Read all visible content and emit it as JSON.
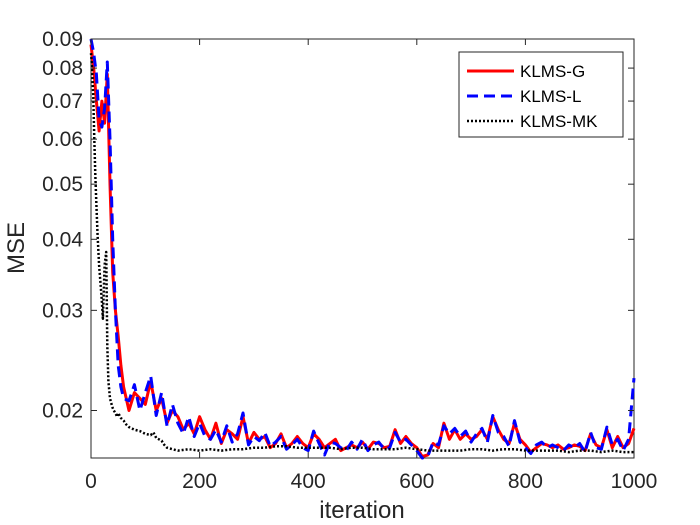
{
  "chart_data": {
    "type": "line",
    "xlabel": "iteration",
    "ylabel": "MSE",
    "xlim": [
      0,
      1000
    ],
    "ylim": [
      0.0165,
      0.09
    ],
    "yscale": "log",
    "grid": false,
    "legend_position": "top-right",
    "xticks": [
      0,
      200,
      400,
      600,
      800,
      1000
    ],
    "xtick_labels": [
      "0",
      "200",
      "400",
      "600",
      "800",
      "1000"
    ],
    "yticks": [
      0.02,
      0.03,
      0.04,
      0.05,
      0.06,
      0.07,
      0.08,
      0.09
    ],
    "ytick_labels": [
      "0.02",
      "0.03",
      "0.04",
      "0.05",
      "0.06",
      "0.07",
      "0.08",
      "0.09"
    ],
    "series": [
      {
        "name": "KLMS-G",
        "color": "#ff0000",
        "style": "solid",
        "x": [
          0,
          5,
          10,
          15,
          20,
          25,
          30,
          35,
          40,
          45,
          50,
          55,
          60,
          70,
          80,
          90,
          100,
          110,
          120,
          130,
          140,
          150,
          160,
          170,
          180,
          190,
          200,
          210,
          220,
          230,
          240,
          250,
          260,
          270,
          280,
          290,
          300,
          310,
          320,
          330,
          340,
          350,
          360,
          370,
          380,
          390,
          400,
          410,
          420,
          430,
          440,
          450,
          460,
          470,
          480,
          490,
          500,
          510,
          520,
          530,
          540,
          550,
          560,
          570,
          580,
          590,
          600,
          610,
          620,
          630,
          640,
          650,
          660,
          670,
          680,
          690,
          700,
          710,
          720,
          730,
          740,
          750,
          760,
          770,
          780,
          790,
          800,
          810,
          820,
          830,
          840,
          850,
          860,
          870,
          880,
          890,
          900,
          910,
          920,
          930,
          940,
          950,
          960,
          970,
          980,
          990,
          1000
        ],
        "y": [
          0.088,
          0.08,
          0.07,
          0.062,
          0.07,
          0.064,
          0.078,
          0.05,
          0.035,
          0.03,
          0.027,
          0.024,
          0.022,
          0.02,
          0.0215,
          0.021,
          0.0205,
          0.0225,
          0.02,
          0.021,
          0.019,
          0.02,
          0.0195,
          0.0185,
          0.019,
          0.0182,
          0.0195,
          0.0185,
          0.0178,
          0.019,
          0.0175,
          0.0185,
          0.0182,
          0.0178,
          0.0195,
          0.0175,
          0.0183,
          0.0178,
          0.018,
          0.0172,
          0.0175,
          0.0182,
          0.0172,
          0.0175,
          0.018,
          0.0175,
          0.0172,
          0.0182,
          0.0178,
          0.0172,
          0.0175,
          0.0178,
          0.017,
          0.0172,
          0.0174,
          0.0172,
          0.0176,
          0.0171,
          0.0176,
          0.0175,
          0.0172,
          0.0173,
          0.0185,
          0.0175,
          0.018,
          0.0175,
          0.0172,
          0.0166,
          0.0167,
          0.0175,
          0.0172,
          0.019,
          0.0178,
          0.0185,
          0.0178,
          0.0182,
          0.0178,
          0.018,
          0.0185,
          0.0178,
          0.0195,
          0.0185,
          0.0178,
          0.0175,
          0.019,
          0.0178,
          0.0174,
          0.0169,
          0.0172,
          0.0175,
          0.0174,
          0.0172,
          0.0174,
          0.0171,
          0.0172,
          0.0174,
          0.0173,
          0.017,
          0.0182,
          0.0174,
          0.0172,
          0.0185,
          0.0172,
          0.018,
          0.0172,
          0.0175,
          0.0186
        ]
      },
      {
        "name": "KLMS-L",
        "color": "#0000ff",
        "style": "dashed",
        "x": [
          0,
          5,
          10,
          15,
          20,
          25,
          30,
          35,
          40,
          45,
          50,
          55,
          60,
          70,
          80,
          90,
          100,
          110,
          120,
          130,
          140,
          150,
          160,
          170,
          180,
          190,
          200,
          210,
          220,
          230,
          240,
          250,
          260,
          270,
          280,
          290,
          300,
          310,
          320,
          330,
          340,
          350,
          360,
          370,
          380,
          390,
          400,
          410,
          420,
          430,
          440,
          450,
          460,
          470,
          480,
          490,
          500,
          510,
          520,
          530,
          540,
          550,
          560,
          570,
          580,
          590,
          600,
          610,
          620,
          630,
          640,
          650,
          660,
          670,
          680,
          690,
          700,
          710,
          720,
          730,
          740,
          750,
          760,
          770,
          780,
          790,
          800,
          810,
          820,
          830,
          840,
          850,
          860,
          870,
          880,
          890,
          900,
          910,
          920,
          930,
          940,
          950,
          960,
          970,
          980,
          990,
          1000
        ],
        "y": [
          0.09,
          0.085,
          0.078,
          0.065,
          0.063,
          0.068,
          0.082,
          0.06,
          0.04,
          0.03,
          0.024,
          0.022,
          0.021,
          0.0208,
          0.0222,
          0.02,
          0.0215,
          0.023,
          0.0196,
          0.0215,
          0.0188,
          0.0205,
          0.019,
          0.0182,
          0.0195,
          0.018,
          0.019,
          0.018,
          0.0178,
          0.0185,
          0.0176,
          0.0188,
          0.0176,
          0.0182,
          0.0198,
          0.0174,
          0.018,
          0.0177,
          0.0183,
          0.0173,
          0.0176,
          0.018,
          0.0171,
          0.0174,
          0.0178,
          0.0172,
          0.017,
          0.0184,
          0.0175,
          0.0167,
          0.0176,
          0.0175,
          0.0172,
          0.017,
          0.0176,
          0.0171,
          0.0178,
          0.017,
          0.0174,
          0.0176,
          0.0171,
          0.0172,
          0.0183,
          0.0176,
          0.0178,
          0.0174,
          0.017,
          0.0165,
          0.0166,
          0.0176,
          0.0174,
          0.0188,
          0.0182,
          0.0186,
          0.018,
          0.0184,
          0.0176,
          0.0182,
          0.0186,
          0.0176,
          0.0196,
          0.0183,
          0.018,
          0.0173,
          0.0192,
          0.0176,
          0.0172,
          0.0168,
          0.0174,
          0.0176,
          0.0172,
          0.0174,
          0.0172,
          0.017,
          0.0174,
          0.0172,
          0.0175,
          0.0169,
          0.0183,
          0.0172,
          0.0171,
          0.0187,
          0.0174,
          0.0178,
          0.017,
          0.0178,
          0.0228
        ]
      },
      {
        "name": "KLMS-MK",
        "color": "#000000",
        "style": "dotted",
        "x": [
          0,
          2,
          4,
          6,
          8,
          10,
          12,
          15,
          18,
          20,
          22,
          25,
          28,
          30,
          32,
          35,
          38,
          40,
          42,
          45,
          48,
          50,
          55,
          60,
          65,
          70,
          80,
          90,
          100,
          110,
          115,
          120,
          125,
          130,
          135,
          140,
          150,
          160,
          180,
          200,
          220,
          240,
          260,
          280,
          300,
          320,
          340,
          360,
          380,
          400,
          420,
          440,
          460,
          480,
          500,
          520,
          540,
          560,
          580,
          600,
          620,
          640,
          660,
          680,
          700,
          720,
          740,
          760,
          780,
          800,
          820,
          840,
          860,
          880,
          900,
          920,
          940,
          960,
          980,
          1000
        ],
        "y": [
          0.085,
          0.08,
          0.072,
          0.06,
          0.052,
          0.046,
          0.041,
          0.036,
          0.033,
          0.031,
          0.029,
          0.036,
          0.038,
          0.026,
          0.0225,
          0.021,
          0.0205,
          0.0202,
          0.02,
          0.0198,
          0.0195,
          0.0198,
          0.0194,
          0.0192,
          0.0189,
          0.0187,
          0.0185,
          0.0184,
          0.0182,
          0.0181,
          0.0183,
          0.0179,
          0.0178,
          0.0177,
          0.0174,
          0.0172,
          0.0171,
          0.017,
          0.0171,
          0.017,
          0.0171,
          0.017,
          0.0171,
          0.0171,
          0.0172,
          0.0172,
          0.0173,
          0.0173,
          0.0172,
          0.0172,
          0.0172,
          0.0172,
          0.0171,
          0.0172,
          0.0172,
          0.0171,
          0.0171,
          0.0171,
          0.0172,
          0.0171,
          0.017,
          0.017,
          0.017,
          0.017,
          0.0171,
          0.0171,
          0.017,
          0.0171,
          0.0171,
          0.017,
          0.017,
          0.017,
          0.017,
          0.0169,
          0.017,
          0.017,
          0.0169,
          0.017,
          0.0169,
          0.0169
        ]
      }
    ]
  }
}
